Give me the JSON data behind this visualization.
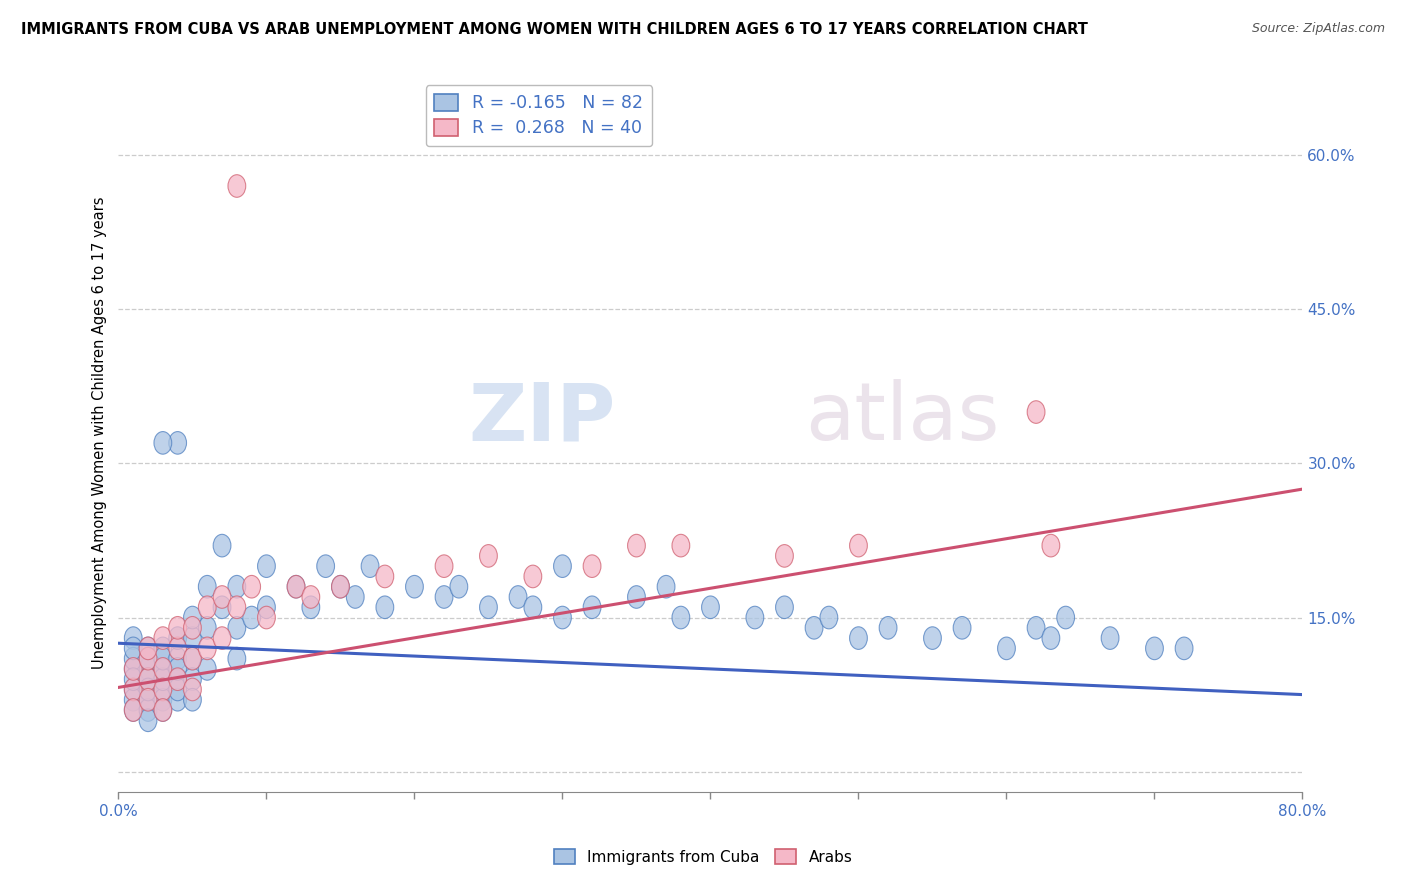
{
  "title": "IMMIGRANTS FROM CUBA VS ARAB UNEMPLOYMENT AMONG WOMEN WITH CHILDREN AGES 6 TO 17 YEARS CORRELATION CHART",
  "source": "Source: ZipAtlas.com",
  "ylabel": "Unemployment Among Women with Children Ages 6 to 17 years",
  "xlim": [
    0.0,
    0.8
  ],
  "ylim": [
    -0.02,
    0.68
  ],
  "xticks": [
    0.0,
    0.1,
    0.2,
    0.3,
    0.4,
    0.5,
    0.6,
    0.7,
    0.8
  ],
  "right_yticks": [
    0.0,
    0.15,
    0.3,
    0.45,
    0.6
  ],
  "right_ytick_labels": [
    "",
    "15.0%",
    "30.0%",
    "45.0%",
    "60.0%"
  ],
  "watermark_zip": "ZIP",
  "watermark_atlas": "atlas",
  "color_blue": "#aac4e3",
  "color_pink": "#f5b8c8",
  "color_blue_edge": "#5080c0",
  "color_pink_edge": "#d06070",
  "color_trendline_blue": "#4060c0",
  "color_trendline_pink": "#cc5070",
  "color_axis_label": "#4472c4",
  "background_color": "#ffffff",
  "grid_color": "#cccccc",
  "scatter_blue_x": [
    0.01,
    0.01,
    0.01,
    0.01,
    0.01,
    0.01,
    0.01,
    0.01,
    0.02,
    0.02,
    0.02,
    0.02,
    0.02,
    0.02,
    0.02,
    0.02,
    0.02,
    0.02,
    0.03,
    0.03,
    0.03,
    0.03,
    0.03,
    0.03,
    0.03,
    0.04,
    0.04,
    0.04,
    0.04,
    0.04,
    0.04,
    0.05,
    0.05,
    0.05,
    0.05,
    0.05,
    0.06,
    0.06,
    0.06,
    0.07,
    0.07,
    0.08,
    0.08,
    0.08,
    0.09,
    0.1,
    0.1,
    0.12,
    0.13,
    0.14,
    0.15,
    0.16,
    0.17,
    0.18,
    0.2,
    0.22,
    0.23,
    0.25,
    0.27,
    0.28,
    0.3,
    0.3,
    0.32,
    0.35,
    0.37,
    0.38,
    0.4,
    0.43,
    0.45,
    0.47,
    0.48,
    0.5,
    0.52,
    0.55,
    0.57,
    0.6,
    0.62,
    0.63,
    0.64,
    0.67,
    0.7,
    0.72,
    0.04,
    0.03
  ],
  "scatter_blue_y": [
    0.1,
    0.08,
    0.13,
    0.07,
    0.11,
    0.06,
    0.09,
    0.12,
    0.08,
    0.12,
    0.09,
    0.07,
    0.1,
    0.06,
    0.11,
    0.05,
    0.09,
    0.08,
    0.1,
    0.08,
    0.12,
    0.07,
    0.09,
    0.06,
    0.11,
    0.09,
    0.11,
    0.07,
    0.13,
    0.08,
    0.1,
    0.13,
    0.11,
    0.09,
    0.07,
    0.15,
    0.18,
    0.14,
    0.1,
    0.22,
    0.16,
    0.18,
    0.14,
    0.11,
    0.15,
    0.2,
    0.16,
    0.18,
    0.16,
    0.2,
    0.18,
    0.17,
    0.2,
    0.16,
    0.18,
    0.17,
    0.18,
    0.16,
    0.17,
    0.16,
    0.15,
    0.2,
    0.16,
    0.17,
    0.18,
    0.15,
    0.16,
    0.15,
    0.16,
    0.14,
    0.15,
    0.13,
    0.14,
    0.13,
    0.14,
    0.12,
    0.14,
    0.13,
    0.15,
    0.13,
    0.12,
    0.12,
    0.32,
    0.32
  ],
  "scatter_pink_x": [
    0.01,
    0.01,
    0.01,
    0.02,
    0.02,
    0.02,
    0.02,
    0.03,
    0.03,
    0.03,
    0.03,
    0.04,
    0.04,
    0.04,
    0.05,
    0.05,
    0.05,
    0.06,
    0.06,
    0.07,
    0.07,
    0.08,
    0.09,
    0.1,
    0.12,
    0.13,
    0.15,
    0.18,
    0.22,
    0.25,
    0.28,
    0.32,
    0.35,
    0.38,
    0.45,
    0.5,
    0.62,
    0.63,
    0.08
  ],
  "scatter_pink_y": [
    0.08,
    0.06,
    0.1,
    0.09,
    0.11,
    0.07,
    0.12,
    0.1,
    0.08,
    0.13,
    0.06,
    0.12,
    0.09,
    0.14,
    0.11,
    0.14,
    0.08,
    0.16,
    0.12,
    0.17,
    0.13,
    0.16,
    0.18,
    0.15,
    0.18,
    0.17,
    0.18,
    0.19,
    0.2,
    0.21,
    0.19,
    0.2,
    0.22,
    0.22,
    0.21,
    0.22,
    0.35,
    0.22,
    0.57
  ],
  "trendline_blue": [
    0.0,
    0.8,
    0.125,
    0.075
  ],
  "trendline_pink": [
    0.0,
    0.8,
    0.082,
    0.275
  ]
}
